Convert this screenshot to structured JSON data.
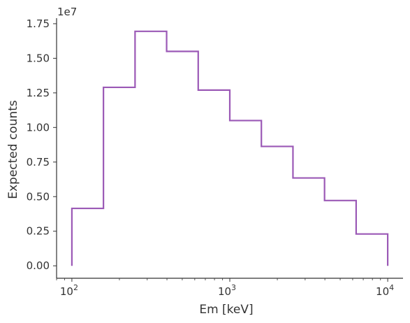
{
  "chart_data": {
    "type": "line",
    "drawstyle": "step",
    "xscale": "log",
    "xlabel": "Em [keV]",
    "ylabel": "Expected counts",
    "y_offset_text": "1e7",
    "xlim": [
      80,
      12500
    ],
    "ylim": [
      -0.09,
      1.79
    ],
    "x_ticks": [
      {
        "value": 100,
        "base": "10",
        "exp": "2"
      },
      {
        "value": 1000,
        "base": "10",
        "exp": "3"
      },
      {
        "value": 10000,
        "base": "10",
        "exp": "4"
      }
    ],
    "y_ticks": [
      {
        "value": 0.0,
        "label": "0.00"
      },
      {
        "value": 0.25,
        "label": "0.25"
      },
      {
        "value": 0.5,
        "label": "0.50"
      },
      {
        "value": 0.75,
        "label": "0.75"
      },
      {
        "value": 1.0,
        "label": "1.00"
      },
      {
        "value": 1.25,
        "label": "1.25"
      },
      {
        "value": 1.5,
        "label": "1.50"
      },
      {
        "value": 1.75,
        "label": "1.75"
      }
    ],
    "bin_edges": [
      100,
      158.5,
      251.2,
      398.1,
      631,
      1000,
      1585,
      2512,
      3981,
      6310,
      10000
    ],
    "series": [
      {
        "color": "#9b59b6",
        "values": [
          0.415,
          1.29,
          1.695,
          1.55,
          1.27,
          1.05,
          0.863,
          0.635,
          0.472,
          0.23
        ]
      }
    ],
    "grid": false,
    "legend": "none"
  }
}
